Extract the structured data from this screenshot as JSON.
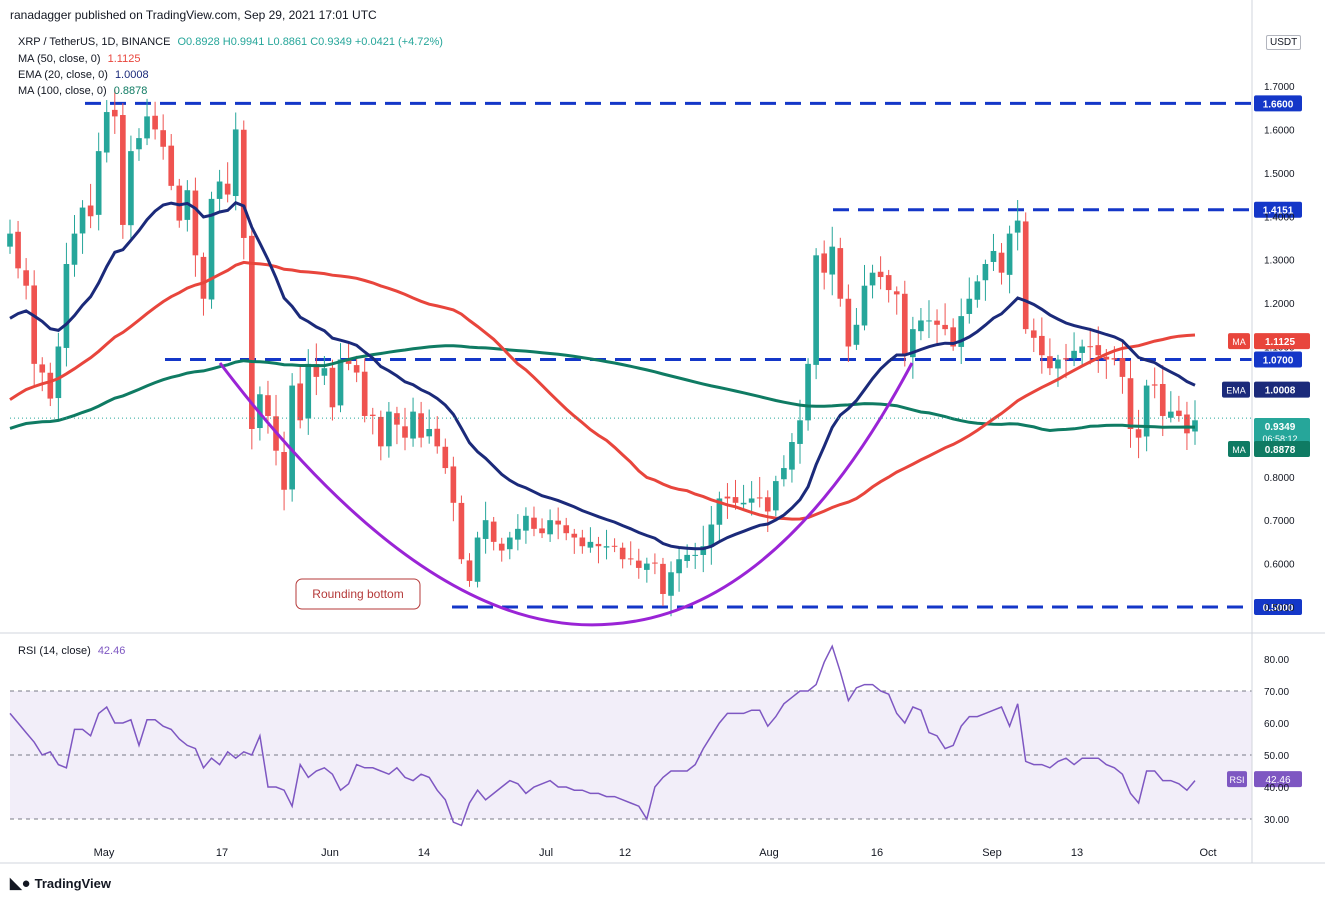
{
  "header": {
    "published": "ranadagger published on TradingView.com, Sep 29, 2021 17:01 UTC"
  },
  "legend": {
    "symbol": "XRP / TetherUS, 1D, BINANCE",
    "ohlc": "O0.8928 H0.9941 L0.8861 C0.9349 +0.0421 (+4.72%)",
    "ma50_label": "MA (50, close, 0)",
    "ma50_value": "1.1125",
    "ema20_label": "EMA (20, close, 0)",
    "ema20_value": "1.0008",
    "ma100_label": "MA (100, close, 0)",
    "ma100_value": "0.8878",
    "rsi_label": "RSI (14, close)",
    "rsi_value": "42.46"
  },
  "currency_badge": "USDT",
  "footer": {
    "brand": "TradingView"
  },
  "colors": {
    "up": "#26a69a",
    "down": "#ef5350",
    "ema20": "#1b2a7a",
    "ma50": "#e8453c",
    "ma100": "#0f7b63",
    "level": "#1437c8",
    "pattern": "#9a24d6",
    "rsi": "#7e57c2",
    "annotation": "#b53a3a"
  },
  "chart_data": [
    {
      "type": "candlestick",
      "title": "XRP / TetherUS, 1D, BINANCE",
      "x_tick_labels": [
        "May",
        "17",
        "Jun",
        "14",
        "Jul",
        "12",
        "Aug",
        "16",
        "Sep",
        "13",
        "Oct"
      ],
      "y_tick_labels": [
        "0.5000",
        "0.6000",
        "0.7000",
        "0.8000",
        "0.9000",
        "1.0000",
        "1.1000",
        "1.2000",
        "1.3000",
        "1.4000",
        "1.5000",
        "1.6000",
        "1.7000"
      ],
      "ylim": [
        0.46,
        1.76
      ],
      "grid": false,
      "horizontal_levels": [
        {
          "label": "1.6600",
          "value": 1.66
        },
        {
          "label": "1.4151",
          "value": 1.4151
        },
        {
          "label": "1.0700",
          "value": 1.07
        },
        {
          "label": "0.5000",
          "value": 0.5
        }
      ],
      "price_badges": [
        {
          "name": "MA",
          "label": "1.1125",
          "value": 1.1125
        },
        {
          "name": "EMA",
          "label": "1.0008",
          "value": 1.0008
        },
        {
          "name": "",
          "label": "0.9349",
          "sublabel": "06:58:12",
          "value": 0.9349
        },
        {
          "name": "MA",
          "label": "0.8878",
          "value": 0.8878
        }
      ],
      "annotation": "Rounding bottom",
      "candles_x_range": [
        "Apr 20",
        "Sep 29"
      ],
      "candles_close": [
        1.36,
        1.28,
        1.24,
        1.06,
        1.04,
        0.98,
        1.1,
        1.29,
        1.36,
        1.42,
        1.4,
        1.55,
        1.64,
        1.63,
        1.38,
        1.55,
        1.58,
        1.63,
        1.6,
        1.56,
        1.47,
        1.39,
        1.46,
        1.31,
        1.21,
        1.44,
        1.48,
        1.45,
        1.6,
        1.35,
        0.91,
        0.99,
        0.94,
        0.86,
        0.77,
        1.01,
        0.93,
        1.06,
        1.03,
        1.05,
        0.96,
        1.07,
        1.06,
        1.04,
        0.94,
        0.94,
        0.87,
        0.95,
        0.92,
        0.89,
        0.95,
        0.89,
        0.91,
        0.87,
        0.82,
        0.74,
        0.61,
        0.56,
        0.66,
        0.7,
        0.65,
        0.63,
        0.66,
        0.68,
        0.71,
        0.68,
        0.67,
        0.7,
        0.69,
        0.67,
        0.66,
        0.64,
        0.65,
        0.64,
        0.64,
        0.64,
        0.61,
        0.61,
        0.59,
        0.6,
        0.6,
        0.53,
        0.58,
        0.61,
        0.62,
        0.62,
        0.64,
        0.69,
        0.75,
        0.75,
        0.74,
        0.74,
        0.75,
        0.75,
        0.72,
        0.79,
        0.82,
        0.88,
        0.93,
        1.06,
        1.31,
        1.27,
        1.33,
        1.21,
        1.1,
        1.15,
        1.24,
        1.27,
        1.26,
        1.23,
        1.22,
        1.08,
        1.14,
        1.16,
        1.16,
        1.15,
        1.14,
        1.1,
        1.17,
        1.21,
        1.25,
        1.29,
        1.32,
        1.27,
        1.36,
        1.39,
        1.14,
        1.12,
        1.08,
        1.05,
        1.07,
        1.07,
        1.09,
        1.1,
        1.1,
        1.08,
        1.07,
        1.07,
        1.03,
        0.91,
        0.89,
        1.01,
        1.01,
        0.94,
        0.95,
        0.94,
        0.9,
        0.93
      ]
    },
    {
      "type": "line",
      "title": "RSI (14, close)",
      "y_tick_labels": [
        "30.00",
        "40.00",
        "50.00",
        "60.00",
        "70.00",
        "80.00"
      ],
      "ylim": [
        26,
        86
      ],
      "band": [
        30,
        70
      ],
      "midline": 50,
      "last_value": 42.46,
      "values": [
        63,
        60,
        57,
        54,
        50,
        51,
        47,
        46,
        58,
        58,
        56,
        63,
        65,
        60,
        60,
        61,
        53,
        61,
        61,
        59,
        58,
        55,
        53,
        52,
        46,
        49,
        47,
        51,
        49,
        51,
        50,
        56,
        40,
        40,
        39,
        34,
        47,
        43,
        45,
        46,
        44,
        39,
        41,
        47,
        46,
        46,
        45,
        44,
        46,
        43,
        42,
        44,
        43,
        39,
        36,
        29,
        28,
        35,
        39,
        36,
        38,
        40,
        42,
        41,
        38,
        40,
        41,
        42,
        40,
        40,
        39,
        39,
        38,
        38,
        37,
        37,
        36,
        35,
        34,
        30,
        40,
        43,
        45,
        45,
        45,
        47,
        52,
        56,
        60,
        63,
        63,
        63,
        64,
        64,
        59,
        62,
        66,
        68,
        70,
        70,
        72,
        79,
        84,
        76,
        67,
        71,
        72,
        72,
        70,
        69,
        63,
        60,
        65,
        64,
        57,
        56,
        52,
        53,
        59,
        62,
        62,
        63,
        64,
        65,
        59,
        66,
        48,
        47,
        47,
        46,
        48,
        49,
        47,
        49,
        49,
        49,
        47,
        46,
        44,
        38,
        35,
        45,
        45,
        42,
        42,
        41,
        39,
        42
      ]
    }
  ]
}
